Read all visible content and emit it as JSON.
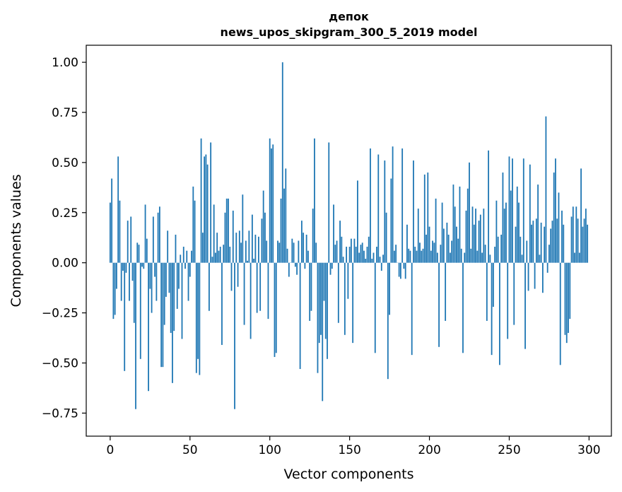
{
  "chart_data": {
    "type": "bar",
    "title_line1": "депок",
    "title_line2": "news_upos_skipgram_300_5_2019 model",
    "xlabel": "Vector components",
    "ylabel": "Components values",
    "xlim": [
      -15,
      314
    ],
    "ylim": [
      -0.865,
      1.085
    ],
    "xticks": [
      0,
      50,
      100,
      150,
      200,
      250,
      300
    ],
    "xtick_labels": [
      "0",
      "50",
      "100",
      "150",
      "200",
      "250",
      "300"
    ],
    "yticks": [
      -0.75,
      -0.5,
      -0.25,
      0.0,
      0.25,
      0.5,
      0.75,
      1.0
    ],
    "ytick_labels": [
      "−0.75",
      "−0.50",
      "−0.25",
      "0.00",
      "0.25",
      "0.50",
      "0.75",
      "1.00"
    ],
    "bar_color": "#1f77b4",
    "grid": false,
    "values": [
      0.3,
      0.42,
      -0.28,
      -0.26,
      -0.13,
      0.53,
      0.31,
      -0.19,
      -0.04,
      -0.54,
      -0.05,
      0.21,
      -0.19,
      0.23,
      -0.09,
      -0.3,
      -0.73,
      0.1,
      0.09,
      -0.48,
      -0.02,
      -0.03,
      0.29,
      0.12,
      -0.64,
      -0.13,
      -0.25,
      0.23,
      -0.07,
      -0.19,
      0.25,
      0.28,
      -0.52,
      -0.52,
      -0.31,
      -0.17,
      0.16,
      -0.15,
      -0.35,
      -0.6,
      -0.34,
      0.14,
      -0.23,
      -0.13,
      0.04,
      -0.38,
      0.08,
      -0.03,
      0.06,
      -0.19,
      -0.07,
      0.06,
      0.38,
      0.31,
      -0.55,
      -0.48,
      -0.56,
      0.62,
      0.15,
      0.53,
      0.54,
      0.49,
      -0.24,
      0.6,
      0.03,
      0.29,
      0.05,
      0.15,
      0.06,
      0.08,
      -0.41,
      0.09,
      0.25,
      0.32,
      0.32,
      0.08,
      -0.14,
      0.26,
      -0.73,
      0.15,
      -0.12,
      0.16,
      0.1,
      0.34,
      -0.31,
      0.11,
      0.01,
      0.16,
      -0.38,
      0.24,
      0.02,
      0.14,
      -0.25,
      0.13,
      -0.24,
      0.22,
      0.36,
      0.25,
      0.11,
      -0.28,
      0.62,
      0.57,
      0.59,
      -0.47,
      -0.45,
      0.11,
      0.1,
      0.32,
      1.0,
      0.37,
      0.47,
      0.07,
      -0.07,
      0.0,
      0.12,
      0.1,
      -0.02,
      -0.06,
      0.11,
      -0.53,
      0.21,
      0.15,
      -0.03,
      0.14,
      0.06,
      -0.29,
      -0.24,
      0.27,
      0.62,
      0.1,
      -0.55,
      -0.4,
      -0.36,
      -0.69,
      -0.19,
      -0.38,
      -0.48,
      0.6,
      -0.06,
      -0.03,
      0.29,
      0.09,
      0.11,
      -0.3,
      0.21,
      0.13,
      0.03,
      -0.36,
      0.08,
      -0.18,
      0.08,
      0.12,
      -0.4,
      0.12,
      0.08,
      0.41,
      0.05,
      0.09,
      0.1,
      0.06,
      0.02,
      0.08,
      0.13,
      0.57,
      0.02,
      0.05,
      -0.45,
      0.08,
      0.54,
      0.03,
      -0.04,
      0.04,
      0.51,
      0.25,
      -0.58,
      -0.26,
      0.42,
      0.58,
      0.06,
      0.09,
      0.0,
      -0.07,
      -0.08,
      0.57,
      -0.03,
      -0.08,
      0.19,
      0.07,
      0.06,
      -0.46,
      0.51,
      0.08,
      0.06,
      0.27,
      0.1,
      0.06,
      0.07,
      0.44,
      0.14,
      0.45,
      0.18,
      0.06,
      0.11,
      0.1,
      0.32,
      0.05,
      -0.42,
      0.09,
      0.3,
      0.17,
      -0.29,
      0.2,
      0.14,
      0.05,
      0.11,
      0.39,
      0.28,
      0.18,
      0.12,
      0.38,
      0.07,
      -0.45,
      0.05,
      0.26,
      0.37,
      0.5,
      0.07,
      0.28,
      0.19,
      0.27,
      0.06,
      0.21,
      0.24,
      0.05,
      0.27,
      0.09,
      -0.29,
      0.56,
      0.04,
      -0.46,
      -0.22,
      0.08,
      0.31,
      0.13,
      -0.51,
      0.14,
      0.45,
      0.27,
      0.3,
      -0.38,
      0.53,
      0.36,
      0.52,
      -0.31,
      0.18,
      0.38,
      0.3,
      0.13,
      0.04,
      0.52,
      -0.43,
      0.11,
      -0.14,
      0.49,
      0.19,
      0.21,
      -0.13,
      0.22,
      0.39,
      0.04,
      0.2,
      -0.15,
      0.18,
      0.73,
      -0.05,
      0.09,
      0.17,
      0.21,
      0.45,
      0.52,
      0.22,
      0.35,
      -0.51,
      0.26,
      0.19,
      -0.36,
      -0.4,
      -0.35,
      -0.28,
      0.23,
      0.28,
      0.05,
      0.28,
      0.22,
      0.05,
      0.47,
      0.18,
      0.22,
      0.27,
      0.19
    ]
  }
}
